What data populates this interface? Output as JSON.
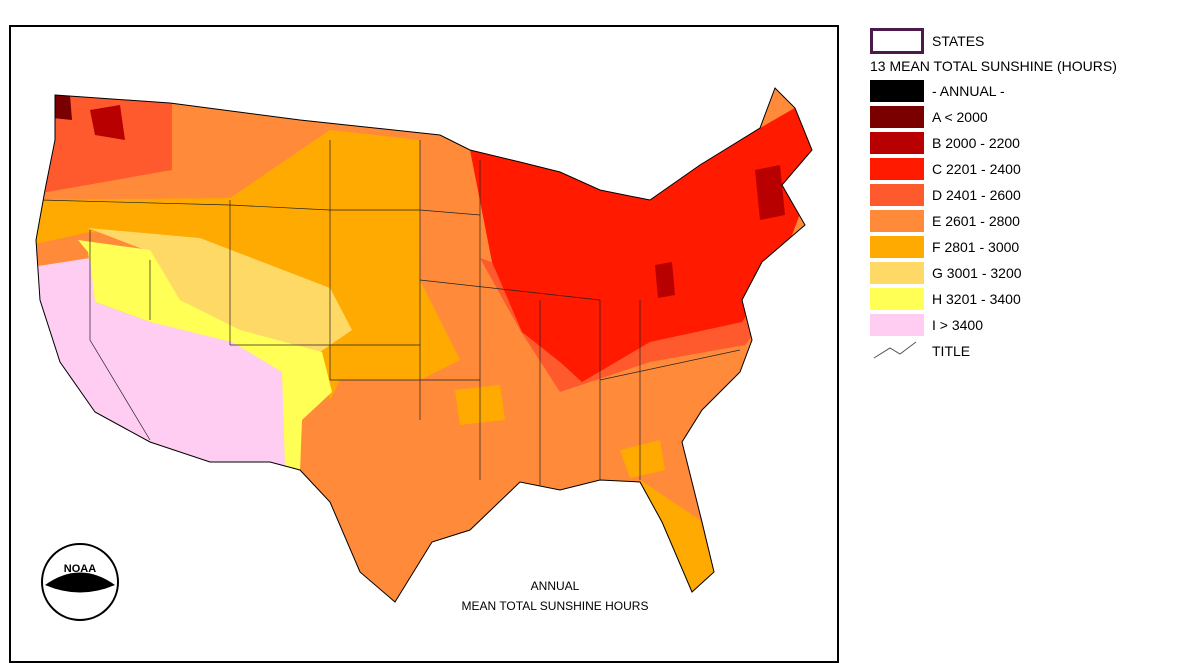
{
  "legend": {
    "layer_label": "STATES",
    "title": "13 MEAN TOTAL SUNSHINE (HOURS)",
    "items": [
      {
        "label": "- ANNUAL -",
        "color": "#000000"
      },
      {
        "label": "A < 2000",
        "color": "#7a0000"
      },
      {
        "label": "B 2000 - 2200",
        "color": "#b80000"
      },
      {
        "label": "C 2201 - 2400",
        "color": "#ff1a00"
      },
      {
        "label": "D 2401 - 2600",
        "color": "#ff5a2e"
      },
      {
        "label": "E 2601 - 2800",
        "color": "#ff8a3a"
      },
      {
        "label": "F 2801 - 3000",
        "color": "#ffaa00"
      },
      {
        "label": "G 3001 - 3200",
        "color": "#ffd966"
      },
      {
        "label": "H 3201 - 3400",
        "color": "#ffff55"
      },
      {
        "label": "I > 3400",
        "color": "#ffccf2"
      }
    ],
    "footer": "TITLE"
  },
  "map": {
    "title_lines": [
      "ANNUAL",
      "MEAN TOTAL SUNSHINE HOURS"
    ],
    "logo": "NOAA"
  }
}
